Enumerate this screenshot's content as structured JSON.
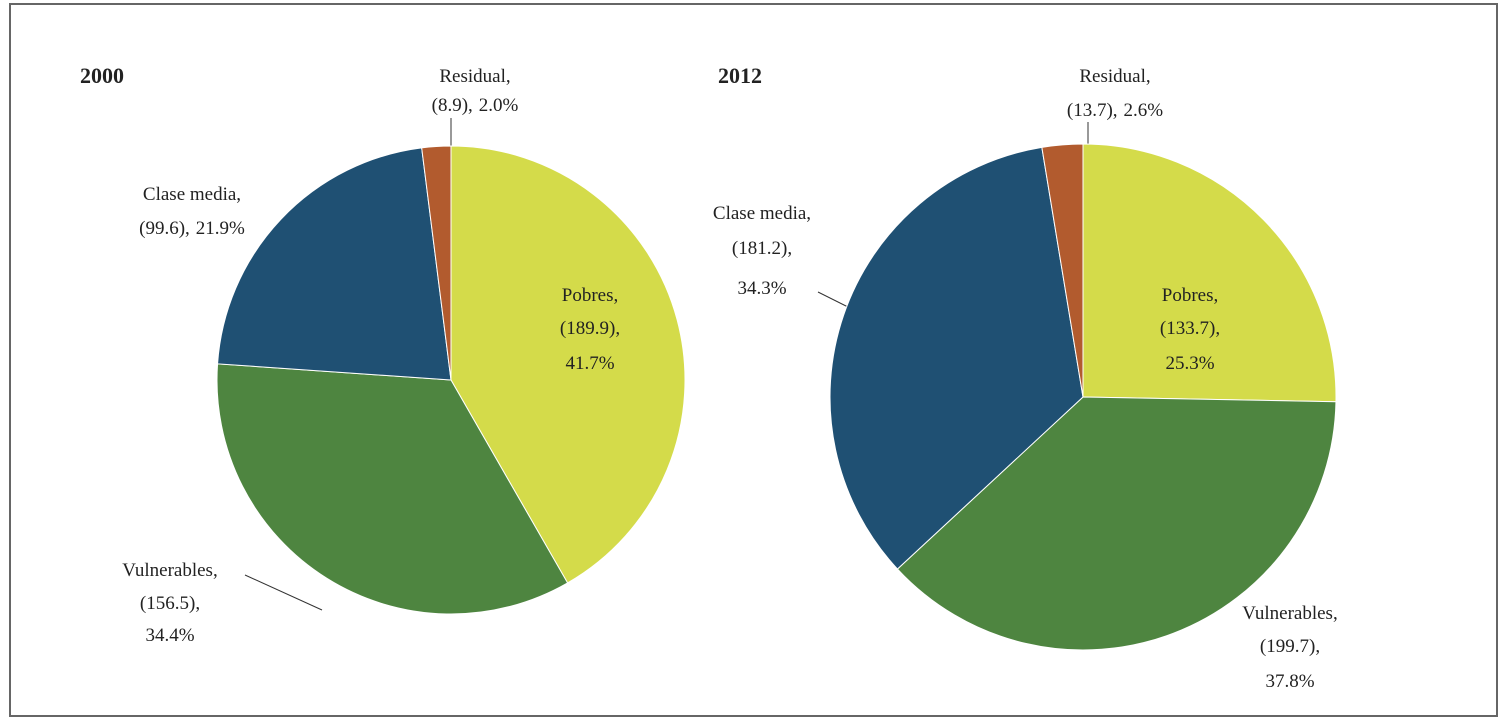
{
  "chart_data": [
    {
      "type": "pie",
      "title": "2000",
      "categories": [
        "Pobres,",
        "Vulnerables,",
        "Clase media,",
        "Residual,"
      ],
      "amounts": [
        189.9,
        156.5,
        99.6,
        8.9
      ],
      "amount_labels": [
        "(189.9),",
        "(156.5),",
        "(99.6),",
        "(8.9),"
      ],
      "values": [
        41.7,
        34.4,
        21.9,
        2.0
      ],
      "value_labels": [
        "41.7%",
        "34.4%",
        "21.9%",
        "2.0%"
      ],
      "colors": [
        "#d4db4a",
        "#4e8540",
        "#1f5073",
        "#b25b2e"
      ]
    },
    {
      "type": "pie",
      "title": "2012",
      "categories": [
        "Pobres,",
        "Vulnerables,",
        "Clase media,",
        "Residual,"
      ],
      "amounts": [
        133.7,
        199.7,
        181.2,
        13.7
      ],
      "amount_labels": [
        "(133.7),",
        "(199.7),",
        "(181.2),",
        "(13.7),"
      ],
      "values": [
        25.3,
        37.8,
        34.3,
        2.6
      ],
      "value_labels": [
        "25.3%",
        "37.8%",
        "34.3%",
        "2.6%"
      ],
      "colors": [
        "#d4db4a",
        "#4e8540",
        "#1f5073",
        "#b25b2e"
      ]
    }
  ]
}
